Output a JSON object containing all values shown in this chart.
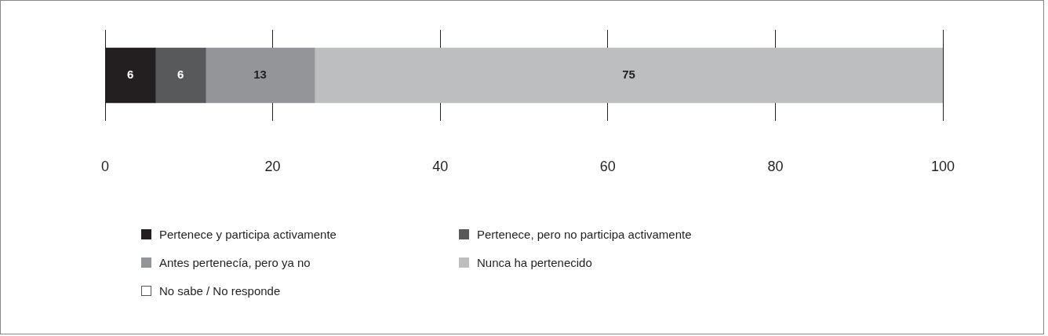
{
  "chart_data": {
    "type": "bar",
    "orientation": "horizontal",
    "stacked": true,
    "categories": [
      null
    ],
    "series": [
      {
        "name": "Pertenece y participa activamente",
        "color": "#231f20",
        "values": [
          6
        ]
      },
      {
        "name": "Pertenece, pero no participa activamente",
        "color": "#58595b",
        "values": [
          6
        ]
      },
      {
        "name": "Antes pertenecía, pero ya no",
        "color": "#939598",
        "values": [
          13
        ]
      },
      {
        "name": "Nunca ha pertenecido",
        "color": "#bcbec0",
        "values": [
          75
        ]
      },
      {
        "name": "No sabe / No responde",
        "color": "#ffffff",
        "values": [
          null
        ]
      }
    ],
    "xlim": [
      0,
      100
    ],
    "xticks": [
      0,
      20,
      40,
      60,
      80,
      100
    ],
    "grid": "x",
    "legend": "bottom",
    "data_labels": true
  }
}
